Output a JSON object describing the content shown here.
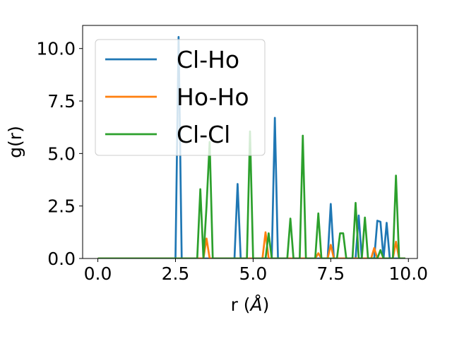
{
  "chart_data": {
    "type": "line",
    "xlabel": "r (",
    "xlabel_unit": "Å",
    "xlabel_close": ")",
    "ylabel": "g(r)",
    "xlim": [
      -0.49,
      10.29
    ],
    "ylim": [
      0,
      11.1
    ],
    "xticks": [
      0.0,
      2.5,
      5.0,
      7.5,
      10.0
    ],
    "xtick_labels": [
      "0.0",
      "2.5",
      "5.0",
      "7.5",
      "10.0"
    ],
    "yticks": [
      0.0,
      2.5,
      5.0,
      7.5,
      10.0
    ],
    "ytick_labels": [
      "0.0",
      "2.5",
      "5.0",
      "7.5",
      "10.0"
    ],
    "grid": false,
    "legend_position": "upper-left",
    "series": [
      {
        "name": "Cl-Ho",
        "color": "#1f77b4",
        "points": [
          [
            0.0,
            0
          ],
          [
            2.5,
            0
          ],
          [
            2.6,
            10.55
          ],
          [
            2.7,
            0
          ],
          [
            4.4,
            0
          ],
          [
            4.5,
            3.55
          ],
          [
            4.6,
            0
          ],
          [
            5.6,
            0
          ],
          [
            5.7,
            6.7
          ],
          [
            5.8,
            0
          ],
          [
            7.4,
            0
          ],
          [
            7.5,
            2.6
          ],
          [
            7.6,
            0
          ],
          [
            8.3,
            0
          ],
          [
            8.4,
            2.05
          ],
          [
            8.5,
            0
          ],
          [
            8.9,
            0
          ],
          [
            9.0,
            1.8
          ],
          [
            9.1,
            1.75
          ],
          [
            9.2,
            0
          ],
          [
            9.3,
            1.7
          ],
          [
            9.4,
            0
          ],
          [
            9.9,
            0
          ]
        ]
      },
      {
        "name": "Ho-Ho",
        "color": "#ff7f0e",
        "points": [
          [
            0.0,
            0
          ],
          [
            3.4,
            0
          ],
          [
            3.5,
            0.95
          ],
          [
            3.6,
            0
          ],
          [
            5.3,
            0
          ],
          [
            5.4,
            1.25
          ],
          [
            5.5,
            0
          ],
          [
            7.0,
            0
          ],
          [
            7.1,
            0.25
          ],
          [
            7.2,
            0
          ],
          [
            7.4,
            0
          ],
          [
            7.5,
            0.65
          ],
          [
            7.6,
            0
          ],
          [
            8.8,
            0
          ],
          [
            8.9,
            0.5
          ],
          [
            9.0,
            0
          ],
          [
            9.5,
            0
          ],
          [
            9.6,
            0.8
          ],
          [
            9.7,
            0
          ],
          [
            9.9,
            0
          ]
        ]
      },
      {
        "name": "Cl-Cl",
        "color": "#2ca02c",
        "points": [
          [
            0.0,
            0
          ],
          [
            3.2,
            0
          ],
          [
            3.3,
            3.3
          ],
          [
            3.4,
            0
          ],
          [
            3.5,
            2.5
          ],
          [
            3.6,
            5.55
          ],
          [
            3.7,
            0
          ],
          [
            4.8,
            0
          ],
          [
            4.9,
            6.05
          ],
          [
            5.0,
            0
          ],
          [
            5.4,
            0
          ],
          [
            5.5,
            1.2
          ],
          [
            5.6,
            0
          ],
          [
            6.1,
            0
          ],
          [
            6.2,
            1.9
          ],
          [
            6.3,
            0
          ],
          [
            6.5,
            0
          ],
          [
            6.6,
            5.85
          ],
          [
            6.7,
            0
          ],
          [
            7.0,
            0
          ],
          [
            7.1,
            2.15
          ],
          [
            7.2,
            0
          ],
          [
            7.7,
            0
          ],
          [
            7.8,
            1.2
          ],
          [
            7.9,
            1.2
          ],
          [
            8.0,
            0
          ],
          [
            8.2,
            0
          ],
          [
            8.3,
            2.65
          ],
          [
            8.4,
            0
          ],
          [
            8.5,
            0
          ],
          [
            8.6,
            1.95
          ],
          [
            8.7,
            0
          ],
          [
            9.0,
            0
          ],
          [
            9.1,
            0.4
          ],
          [
            9.2,
            0
          ],
          [
            9.5,
            0
          ],
          [
            9.6,
            3.95
          ],
          [
            9.7,
            0
          ],
          [
            9.9,
            0
          ]
        ]
      }
    ]
  }
}
